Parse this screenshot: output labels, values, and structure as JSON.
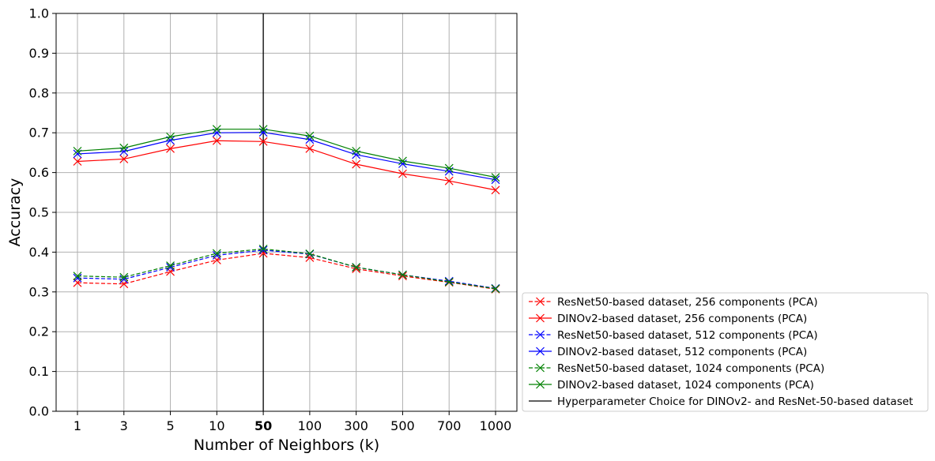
{
  "chart_data": {
    "type": "line",
    "title": "",
    "xlabel": "Number of Neighbors (k)",
    "ylabel": "Accuracy",
    "ylim": [
      0.0,
      1.0
    ],
    "yticks": [
      "0.0",
      "0.1",
      "0.2",
      "0.3",
      "0.4",
      "0.5",
      "0.6",
      "0.7",
      "0.8",
      "0.9",
      "1.0"
    ],
    "categories": [
      "1",
      "3",
      "5",
      "10",
      "50",
      "100",
      "300",
      "500",
      "700",
      "1000"
    ],
    "highlighted_category": "50",
    "grid": true,
    "legend_position": "lower-right outside plot",
    "series": [
      {
        "name": "ResNet50-based dataset, 256 components (PCA)",
        "color": "#ff0000",
        "dashed": true,
        "marker": "x",
        "values": [
          0.323,
          0.32,
          0.351,
          0.38,
          0.397,
          0.386,
          0.358,
          0.34,
          0.324,
          0.307
        ]
      },
      {
        "name": "DINOv2-based dataset, 256 components (PCA)",
        "color": "#ff0000",
        "dashed": false,
        "marker": "x",
        "values": [
          0.628,
          0.634,
          0.66,
          0.68,
          0.678,
          0.66,
          0.621,
          0.597,
          0.579,
          0.556
        ]
      },
      {
        "name": "ResNet50-based dataset, 512 components (PCA)",
        "color": "#0000ff",
        "dashed": true,
        "marker": "x",
        "values": [
          0.335,
          0.332,
          0.362,
          0.392,
          0.405,
          0.395,
          0.362,
          0.343,
          0.327,
          0.309
        ]
      },
      {
        "name": "DINOv2-based dataset, 512 components (PCA)",
        "color": "#0000ff",
        "dashed": false,
        "marker": "x",
        "values": [
          0.647,
          0.653,
          0.681,
          0.7,
          0.701,
          0.683,
          0.645,
          0.622,
          0.603,
          0.582
        ]
      },
      {
        "name": "ResNet50-based dataset, 1024 components (PCA)",
        "color": "#008000",
        "dashed": true,
        "marker": "x",
        "values": [
          0.34,
          0.337,
          0.366,
          0.397,
          0.408,
          0.396,
          0.362,
          0.343,
          0.325,
          0.308
        ]
      },
      {
        "name": "DINOv2-based dataset, 1024 components (PCA)",
        "color": "#008000",
        "dashed": false,
        "marker": "x",
        "values": [
          0.654,
          0.662,
          0.69,
          0.709,
          0.709,
          0.692,
          0.654,
          0.629,
          0.611,
          0.588
        ]
      }
    ],
    "vline": {
      "x": "50",
      "color": "#000000",
      "name": "Hyperparameter Choice for DINOv2- and ResNet-50-based dataset"
    }
  }
}
